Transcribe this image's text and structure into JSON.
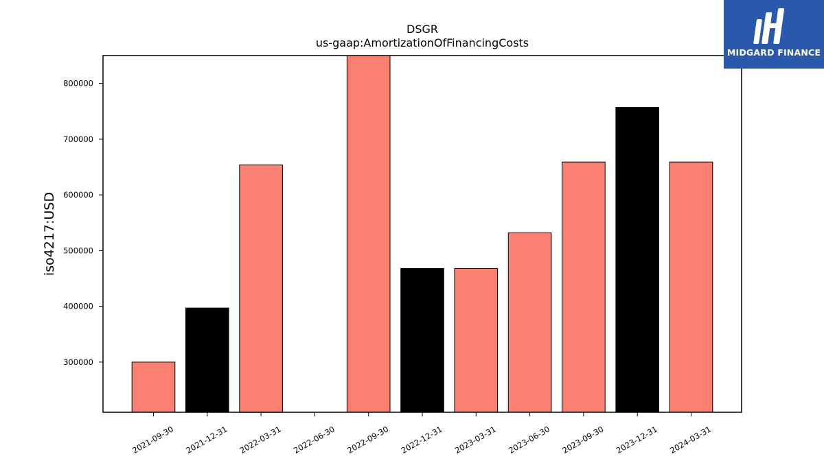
{
  "chart_data": {
    "type": "bar",
    "title": "DSGR",
    "subtitle": "us-gaap:AmortizationOfFinancingCosts",
    "ylabel": "iso4217:USD",
    "xlabel": "",
    "categories": [
      "2021-09-30",
      "2021-12-31",
      "2022-03-31",
      "2022-06-30",
      "2022-09-30",
      "2022-12-31",
      "2023-03-31",
      "2023-06-30",
      "2023-09-30",
      "2023-12-31",
      "2024-03-31"
    ],
    "values": [
      300000,
      397000,
      654000,
      null,
      850000,
      468000,
      468000,
      532000,
      659000,
      757000,
      659000
    ],
    "bar_colors": [
      "#fa8072",
      "#000000",
      "#fa8072",
      "#fa8072",
      "#fa8072",
      "#000000",
      "#fa8072",
      "#fa8072",
      "#fa8072",
      "#000000",
      "#fa8072"
    ],
    "ylim": [
      210000,
      850000
    ],
    "yticks": [
      300000,
      400000,
      500000,
      600000,
      700000,
      800000
    ],
    "ytick_labels": [
      "300000",
      "400000",
      "500000",
      "600000",
      "700000",
      "800000"
    ],
    "grid": false
  },
  "logo": {
    "text": "MIDGARD FINANCE",
    "background": "#2a58ab"
  }
}
